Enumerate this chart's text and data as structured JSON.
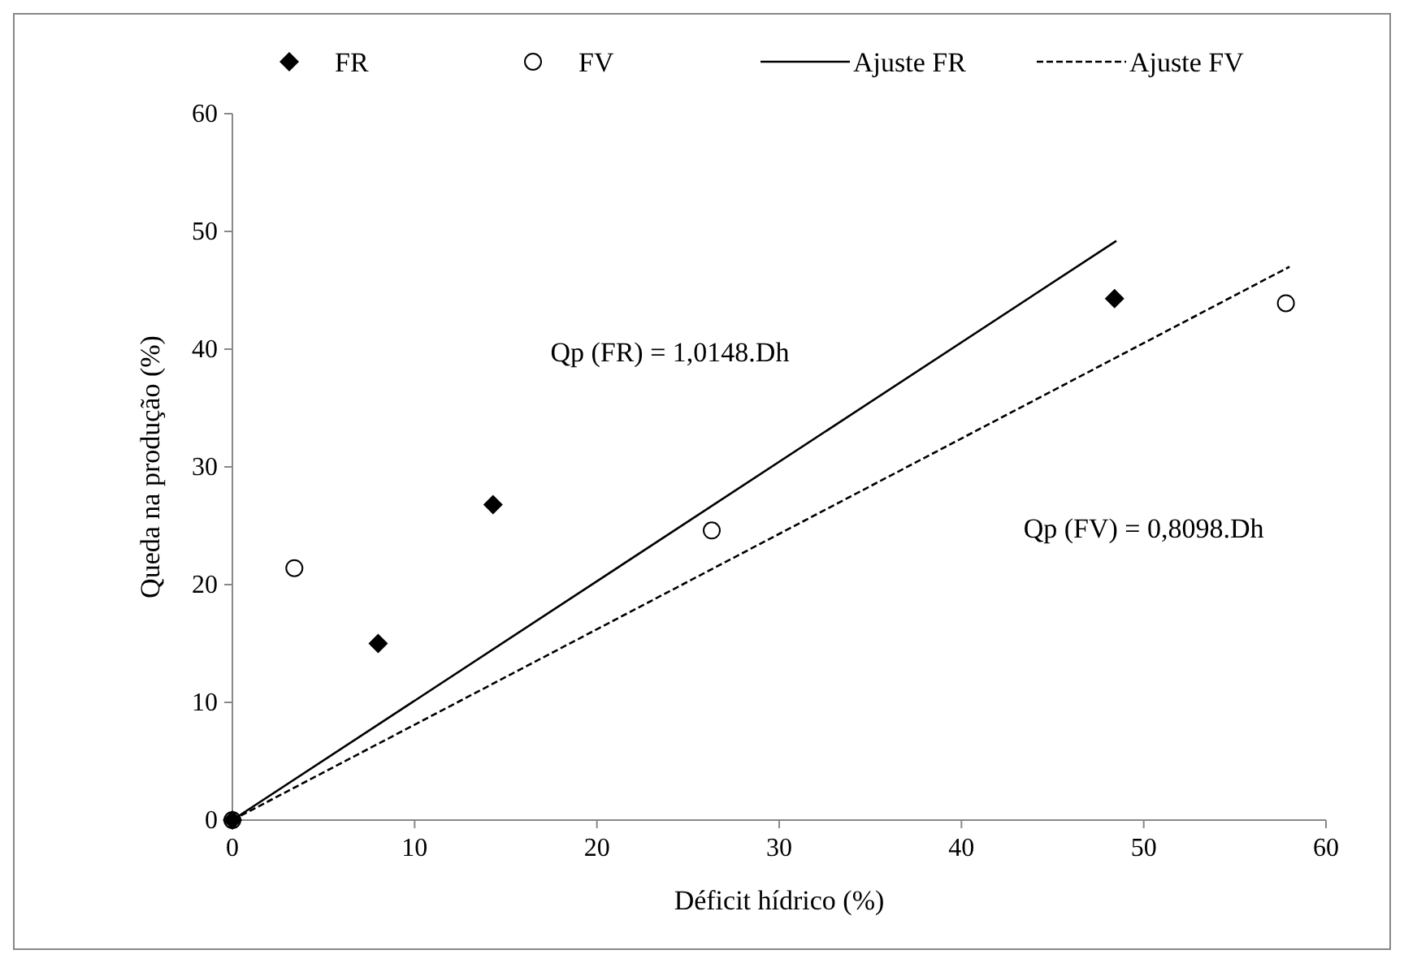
{
  "chart_data": {
    "type": "scatter",
    "xlabel": "Déficit hídrico  (%)",
    "ylabel": "Queda na produção  (%)",
    "xlim": [
      0,
      60
    ],
    "ylim": [
      0,
      60
    ],
    "xticks": [
      0,
      10,
      20,
      30,
      40,
      50,
      60
    ],
    "yticks": [
      0,
      10,
      20,
      30,
      40,
      50,
      60
    ],
    "grid": false,
    "legend": "top",
    "series": [
      {
        "name": "FR",
        "color": "#000000",
        "marker": "diamond",
        "x": [
          0,
          8,
          14.3,
          48.4
        ],
        "values": [
          0,
          15,
          26.8,
          44.3
        ]
      },
      {
        "name": "FV",
        "color": "#000000",
        "marker": "circle",
        "x": [
          0,
          3.4,
          26.3,
          57.8
        ],
        "values": [
          0,
          21.4,
          24.6,
          43.9
        ]
      },
      {
        "name": "Ajuste FR",
        "type": "line",
        "color": "#000000",
        "line_style": "solid",
        "x": [
          0,
          48.5
        ],
        "values": [
          0,
          49.2
        ]
      },
      {
        "name": "Ajuste FV",
        "type": "line",
        "color": "#000000",
        "line_style": "dashed",
        "x": [
          0,
          58
        ],
        "values": [
          0,
          47
        ]
      }
    ],
    "annotations": [
      "Qp (FR) = 1,0148.Dh",
      "Qp (FV) = 0,8098.Dh"
    ]
  }
}
